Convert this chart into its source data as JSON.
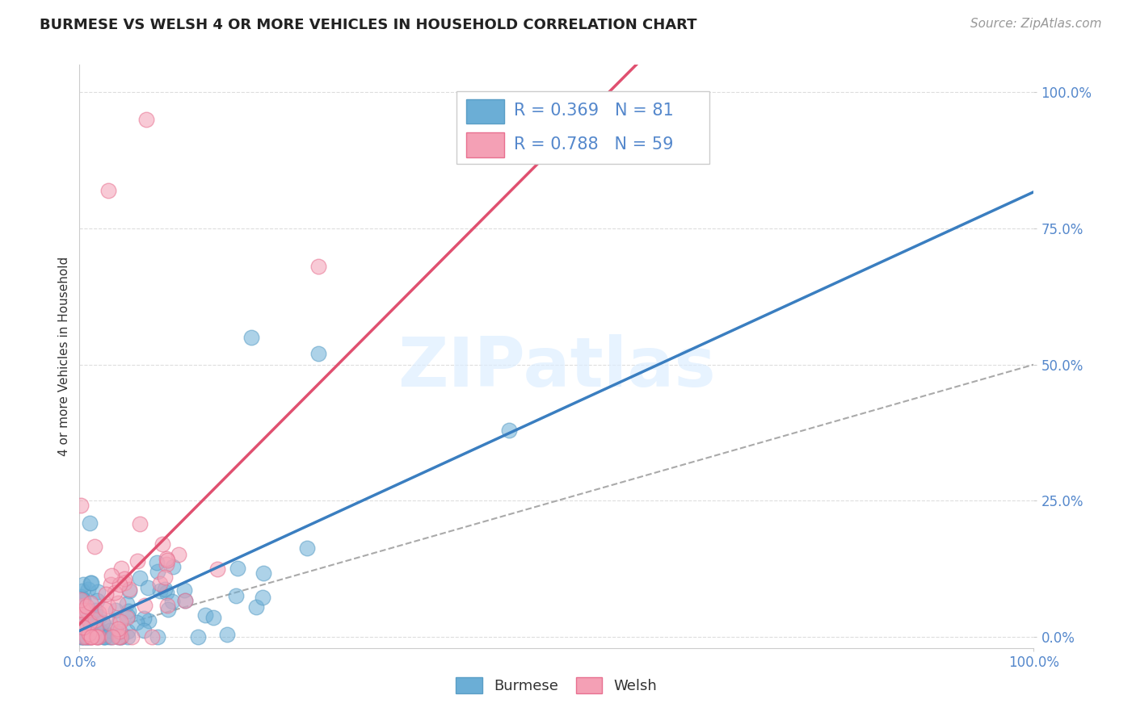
{
  "title": "BURMESE VS WELSH 4 OR MORE VEHICLES IN HOUSEHOLD CORRELATION CHART",
  "source": "Source: ZipAtlas.com",
  "ylabel": "4 or more Vehicles in Household",
  "watermark": "ZIPatlas",
  "burmese_R": 0.369,
  "burmese_N": 81,
  "welsh_R": 0.788,
  "welsh_N": 59,
  "burmese_color": "#6baed6",
  "welsh_color": "#f4a0b5",
  "burmese_edge": "#5a9ec6",
  "welsh_edge": "#e87090",
  "burmese_line_color": "#3a7ec0",
  "welsh_line_color": "#e05070",
  "ref_line_color": "#aaaaaa",
  "ytick_labels": [
    "0.0%",
    "25.0%",
    "50.0%",
    "75.0%",
    "100.0%"
  ],
  "ytick_positions": [
    0.0,
    0.25,
    0.5,
    0.75,
    1.0
  ],
  "background_color": "#ffffff",
  "grid_color": "#dddddd",
  "tick_color": "#5588cc",
  "title_fontsize": 13,
  "label_fontsize": 11,
  "tick_fontsize": 12,
  "legend_fontsize": 15,
  "source_fontsize": 11
}
